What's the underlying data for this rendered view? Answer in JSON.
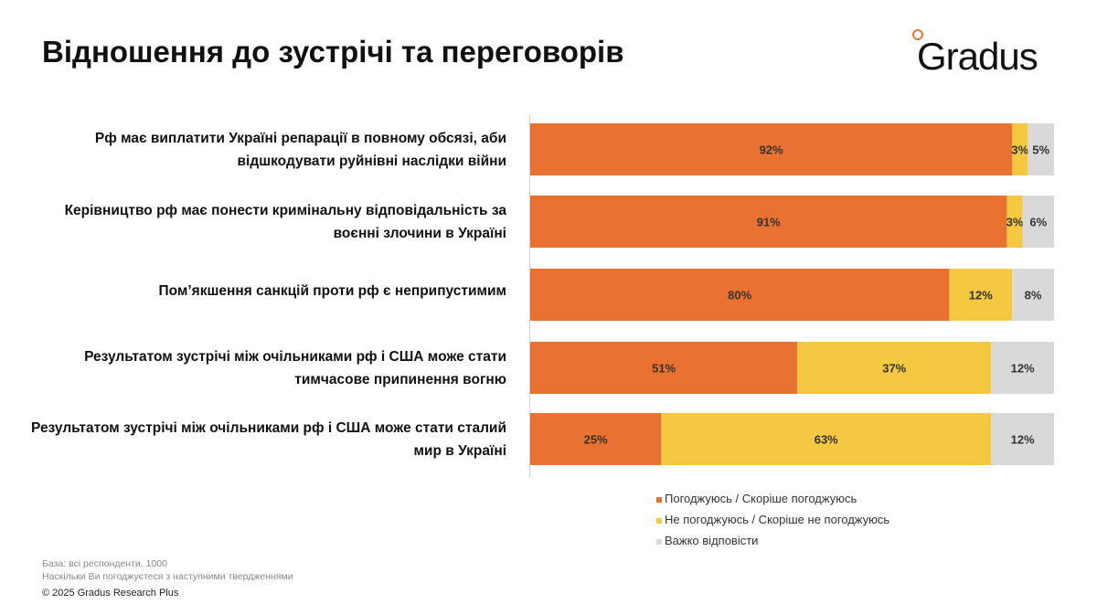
{
  "header": {
    "title": "Відношення до зустрічі та переговорів",
    "logo": "Gradus"
  },
  "chart_data": {
    "type": "bar",
    "orientation": "horizontal",
    "stacked": true,
    "xlim": [
      0,
      100
    ],
    "categories": [
      "Рф має виплатити Україні репарації в повному обсязі, аби відшкодувати руйнівні наслідки війни",
      "Керівництво рф має понести кримінальну відповідальність за воєнні злочини в Україні",
      "Пом’якшення санкцій проти рф є неприпустимим",
      "Результатом зустрічі між очільниками рф і США може стати тимчасове припинення вогню",
      "Результатом зустрічі між очільниками рф і США може стати сталий мир в Україні"
    ],
    "series": [
      {
        "name": "Погоджуюсь / Скоріше погоджуюсь",
        "color": "#E97132",
        "values": [
          92,
          91,
          80,
          51,
          25
        ]
      },
      {
        "name": "Не погоджуюсь / Скоріше не погоджуюсь",
        "color": "#F5C842",
        "values": [
          3,
          3,
          12,
          37,
          63
        ]
      },
      {
        "name": "Важко відповісти",
        "color": "#D9D9D9",
        "values": [
          5,
          6,
          8,
          12,
          12
        ]
      }
    ],
    "legend": "bottom-right"
  },
  "footer": {
    "base": "База: всі респонденти. 1000",
    "question": "Наскільки Ви погоджуєтеся з наступними твердженнями",
    "copyright": "© 2025 Gradus Research Plus"
  }
}
